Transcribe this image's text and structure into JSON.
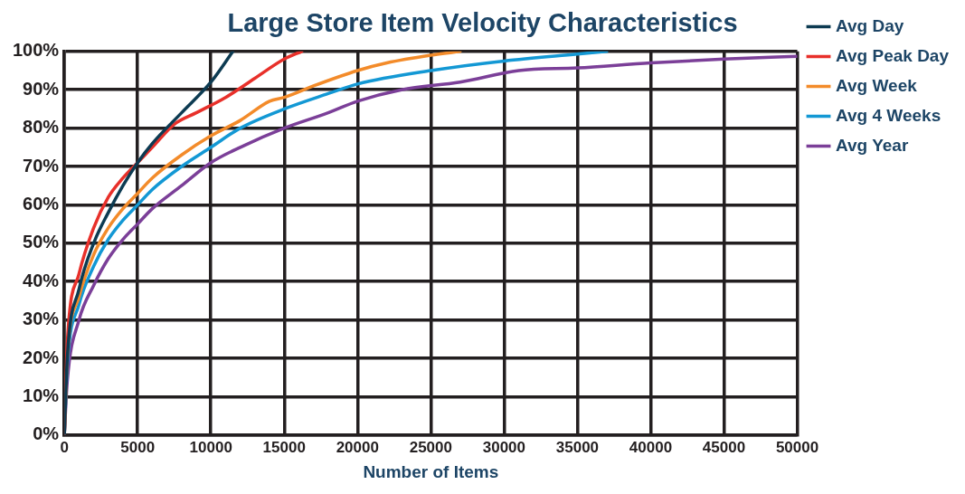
{
  "chart_data": {
    "type": "line",
    "title": "Large Store Item Velocity Characteristics",
    "xlabel": "Number of Items",
    "xlim": [
      0,
      50000
    ],
    "xticks": [
      0,
      5000,
      10000,
      15000,
      20000,
      25000,
      30000,
      35000,
      40000,
      45000,
      50000
    ],
    "ylim": [
      0,
      100
    ],
    "yticks": [
      {
        "value": 0,
        "label": "0%"
      },
      {
        "value": 10,
        "label": "10%"
      },
      {
        "value": 20,
        "label": "20%"
      },
      {
        "value": 30,
        "label": "30%"
      },
      {
        "value": 40,
        "label": "40%"
      },
      {
        "value": 50,
        "label": "50%"
      },
      {
        "value": 60,
        "label": "60%"
      },
      {
        "value": 70,
        "label": "70%"
      },
      {
        "value": 80,
        "label": "80%"
      },
      {
        "value": 90,
        "label": "90%"
      },
      {
        "value": 100,
        "label": "100%"
      }
    ],
    "grid": true,
    "legend": "right",
    "marker": "none",
    "line_style": "solid",
    "series": [
      {
        "name": "Avg Day",
        "color": "#0d3b52",
        "x": [
          0,
          200,
          1000,
          2000,
          3000,
          4000,
          5000,
          6000,
          8000,
          10000,
          11500
        ],
        "values": [
          0,
          20,
          38,
          50,
          58,
          65,
          71,
          76,
          84,
          92,
          100
        ]
      },
      {
        "name": "Avg Peak Day",
        "color": "#e8302a",
        "x": [
          0,
          200,
          1000,
          2000,
          3000,
          4000,
          5000,
          6000,
          7500,
          9000,
          11000,
          13000,
          15000,
          16200
        ],
        "values": [
          0,
          24,
          42,
          54,
          62,
          67,
          71,
          75,
          81,
          84,
          88,
          93,
          98,
          100
        ]
      },
      {
        "name": "Avg Week",
        "color": "#f38b2a",
        "x": [
          0,
          200,
          1000,
          2000,
          3000,
          4000,
          5000,
          6000,
          8000,
          10000,
          12000,
          14000,
          15000,
          17000,
          20000,
          22000,
          25000,
          27000
        ],
        "values": [
          0,
          20,
          36,
          47,
          54,
          59,
          63,
          67,
          73,
          78,
          82,
          87,
          88,
          91,
          95,
          97,
          99,
          100
        ]
      },
      {
        "name": "Avg 4 Weeks",
        "color": "#1398d4",
        "x": [
          0,
          200,
          1000,
          2000,
          3000,
          4000,
          5000,
          6000,
          8000,
          10000,
          12000,
          15000,
          18000,
          20000,
          25000,
          30000,
          35000,
          37000
        ],
        "values": [
          0,
          18,
          34,
          44,
          51,
          56,
          60,
          64,
          70,
          75,
          80,
          85,
          89,
          91.5,
          95,
          97.5,
          99.3,
          100
        ]
      },
      {
        "name": "Avg Year",
        "color": "#7b3f98",
        "x": [
          0,
          200,
          1000,
          2000,
          3000,
          4000,
          5000,
          6000,
          8000,
          10000,
          12000,
          15000,
          18000,
          20000,
          23000,
          27000,
          31000,
          35000,
          40000,
          45000,
          50000
        ],
        "values": [
          0,
          14,
          30,
          39,
          46,
          51,
          55,
          59,
          65,
          71,
          75,
          80,
          84,
          87,
          90,
          92,
          95,
          95.7,
          97,
          98,
          98.7
        ]
      }
    ]
  }
}
